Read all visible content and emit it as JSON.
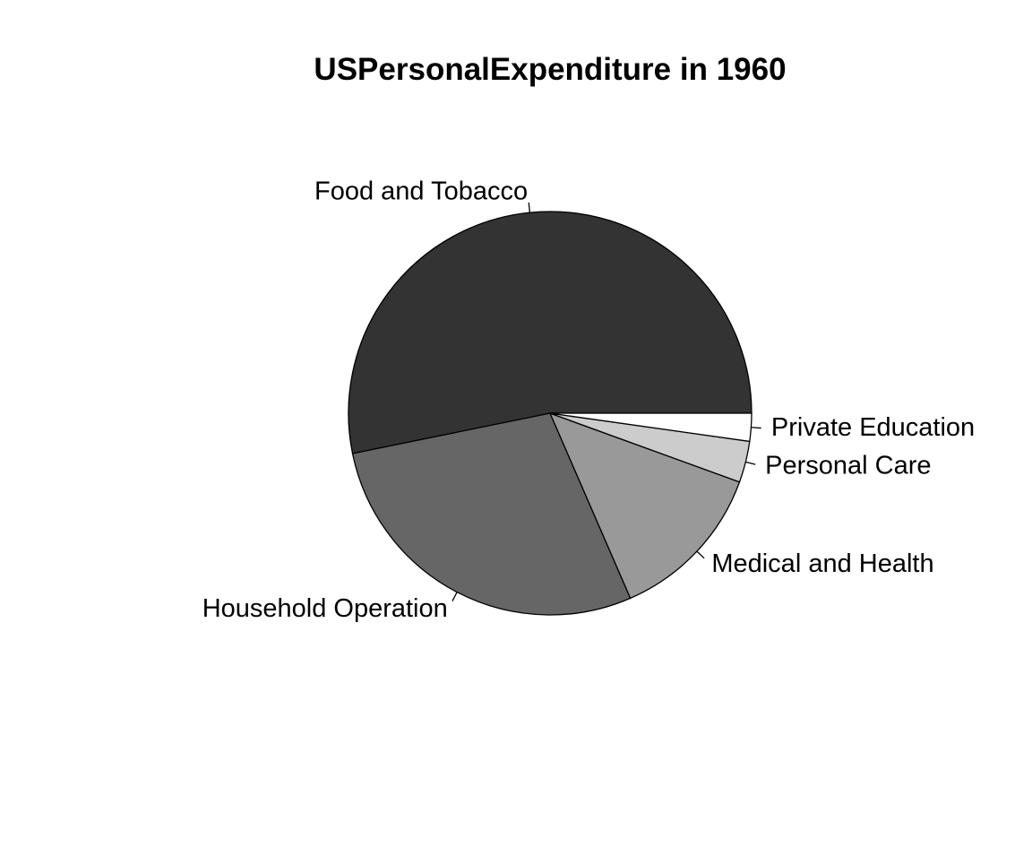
{
  "chart_data": {
    "type": "pie",
    "title": "USPersonalExpenditure in 1960",
    "categories": [
      "Food and Tobacco",
      "Household Operation",
      "Medical and Health",
      "Personal Care",
      "Private Education"
    ],
    "values": [
      86.8,
      46.2,
      21.1,
      5.4,
      3.64
    ],
    "colors": [
      "#333333",
      "#666666",
      "#999999",
      "#cccccc",
      "#ffffff"
    ],
    "border_color": "#000000",
    "start": "3 o'clock",
    "direction": "counterclockwise"
  }
}
